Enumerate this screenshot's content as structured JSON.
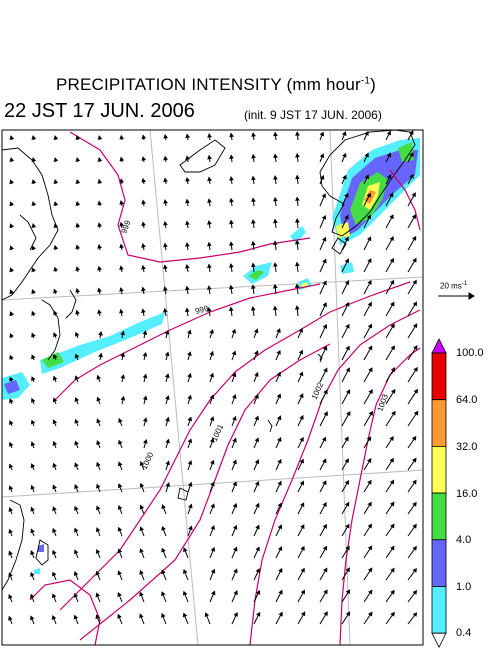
{
  "header": {
    "title_main": "PRECIPITATION INTENSITY (mm hour",
    "title_exp": "-1",
    "title_close": ")",
    "valid_time": "22 JST 17 JUN. 2006",
    "init_time": "(init. 9 JST 17 JUN. 2006)"
  },
  "reference_vector": {
    "value": "20 ms",
    "unit_exp": "-1"
  },
  "colorbar": {
    "levels": [
      "100.0",
      "64.0",
      "32.0",
      "16.0",
      "4.0",
      "1.0",
      "0.4"
    ],
    "colors": [
      "#cc00ff",
      "#e60000",
      "#ff9933",
      "#ffff55",
      "#44dd44",
      "#6666ff",
      "#55eeff",
      "#ffffff"
    ]
  },
  "pressure_labels": [
    "999",
    "999",
    "1000",
    "1001",
    "1002",
    "1003"
  ],
  "colors": {
    "isobar": "#c8006e",
    "grid": "#bbbbbb",
    "coast": "#000000"
  }
}
